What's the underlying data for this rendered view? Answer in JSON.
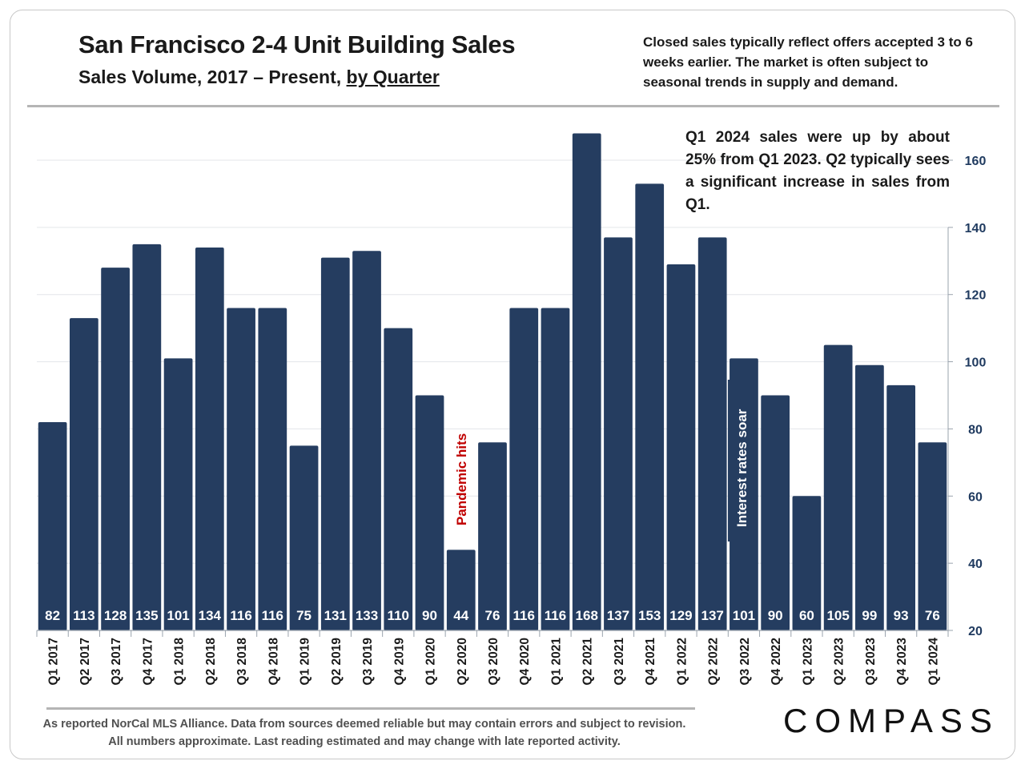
{
  "header": {
    "title": "San Francisco 2-4 Unit Building Sales",
    "subtitle_main": "Sales Volume, 2017 – Present, ",
    "subtitle_underlined": "by Quarter",
    "note": "Closed sales typically reflect offers accepted 3 to 6 weeks earlier. The market is often subject to seasonal trends in supply and demand."
  },
  "callout": "Q1 2024 sales were up by about 25% from Q1 2023. Q2 typically sees a significant increase in sales from Q1.",
  "footer": {
    "note": "As reported NorCal MLS Alliance. Data from sources deemed reliable but may contain errors and subject to revision. All numbers approximate.  Last reading estimated and may change with late reported activity.",
    "brand": "COMPASS"
  },
  "colors": {
    "bar": "#253d60",
    "annotation_red": "#c00000",
    "annotation_box": "#253d60",
    "axis_text": "#1f3a5f"
  },
  "chart_data": {
    "type": "bar",
    "categories": [
      "Q1 2017",
      "Q2 2017",
      "Q3 2017",
      "Q4 2017",
      "Q1 2018",
      "Q2 2018",
      "Q3 2018",
      "Q4 2018",
      "Q1 2019",
      "Q2 2019",
      "Q3 2019",
      "Q4 2019",
      "Q1 2020",
      "Q2 2020",
      "Q3 2020",
      "Q4 2020",
      "Q1 2021",
      "Q2 2021",
      "Q3 2021",
      "Q4 2021",
      "Q1 2022",
      "Q2 2022",
      "Q3 2022",
      "Q4 2022",
      "Q1 2023",
      "Q2 2023",
      "Q3 2023",
      "Q4 2023",
      "Q1 2024"
    ],
    "values": [
      82,
      113,
      128,
      135,
      101,
      134,
      116,
      116,
      75,
      131,
      133,
      110,
      90,
      44,
      76,
      116,
      116,
      168,
      137,
      153,
      129,
      137,
      101,
      90,
      60,
      105,
      99,
      93,
      76
    ],
    "ylim": [
      20,
      170
    ],
    "yticks": [
      20,
      40,
      60,
      80,
      100,
      120,
      140,
      160
    ],
    "y_axis_side": "right",
    "grid": true,
    "data_labels": "inside-bottom",
    "annotations": [
      {
        "text": "Pandemic hits",
        "category": "Q2 2020",
        "style": "vertical red text"
      },
      {
        "text": "Interest rates soar",
        "category": "Q3 2022",
        "style": "vertical white text on dark box"
      }
    ]
  }
}
